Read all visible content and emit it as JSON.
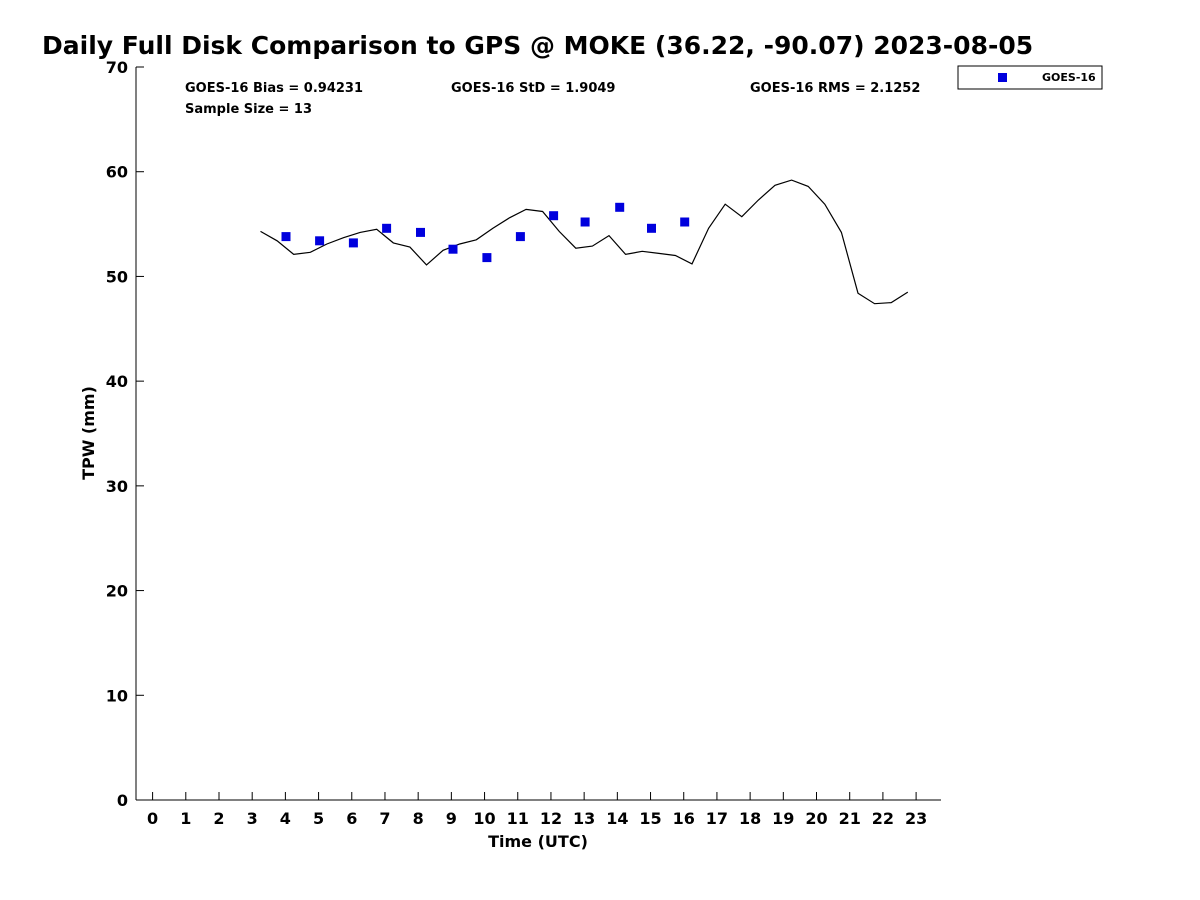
{
  "chart_data": {
    "type": "scatter",
    "title": "Daily Full Disk Comparison to GPS @ MOKE (36.22, -90.07) 2023-08-05",
    "xlabel": "Time (UTC)",
    "ylabel": "TPW (mm)",
    "xlim": [
      -0.5,
      23.75
    ],
    "ylim": [
      0,
      70
    ],
    "x_ticks": [
      0,
      1,
      2,
      3,
      4,
      5,
      6,
      7,
      8,
      9,
      10,
      11,
      12,
      13,
      14,
      15,
      16,
      17,
      18,
      19,
      20,
      21,
      22,
      23
    ],
    "y_ticks": [
      0,
      10,
      20,
      30,
      40,
      50,
      60,
      70
    ],
    "grid": false,
    "legend_position": "outside-top-right",
    "stats": {
      "bias": "GOES-16 Bias = 0.94231",
      "std": "GOES-16 StD = 1.9049",
      "rms": "GOES-16 RMS = 2.1252",
      "sample_size": "Sample Size = 13"
    },
    "series": [
      {
        "name": "GOES-16",
        "kind": "scatter",
        "marker": "square",
        "color": "#0000dd",
        "points": [
          [
            4.02,
            53.8
          ],
          [
            5.03,
            53.4
          ],
          [
            6.05,
            53.2
          ],
          [
            7.05,
            54.6
          ],
          [
            8.07,
            54.2
          ],
          [
            9.05,
            52.6
          ],
          [
            10.07,
            51.8
          ],
          [
            11.08,
            53.8
          ],
          [
            12.08,
            55.8
          ],
          [
            13.03,
            55.2
          ],
          [
            14.07,
            56.6
          ],
          [
            15.03,
            54.6
          ],
          [
            16.03,
            55.2
          ]
        ]
      },
      {
        "kind": "line",
        "color": "#000000",
        "points": [
          [
            3.25,
            54.3
          ],
          [
            3.75,
            53.4
          ],
          [
            4.25,
            52.1
          ],
          [
            4.75,
            52.3
          ],
          [
            5.25,
            53.1
          ],
          [
            5.75,
            53.7
          ],
          [
            6.25,
            54.2
          ],
          [
            6.75,
            54.5
          ],
          [
            7.25,
            53.2
          ],
          [
            7.75,
            52.8
          ],
          [
            8.25,
            51.1
          ],
          [
            8.75,
            52.5
          ],
          [
            9.25,
            53.1
          ],
          [
            9.75,
            53.5
          ],
          [
            10.25,
            54.6
          ],
          [
            10.75,
            55.6
          ],
          [
            11.25,
            56.4
          ],
          [
            11.75,
            56.2
          ],
          [
            12.25,
            54.3
          ],
          [
            12.75,
            52.7
          ],
          [
            13.25,
            52.9
          ],
          [
            13.75,
            53.9
          ],
          [
            14.25,
            52.1
          ],
          [
            14.75,
            52.4
          ],
          [
            15.25,
            52.2
          ],
          [
            15.75,
            52.0
          ],
          [
            16.25,
            51.2
          ],
          [
            16.75,
            54.6
          ],
          [
            17.25,
            56.9
          ],
          [
            17.75,
            55.7
          ],
          [
            18.25,
            57.3
          ],
          [
            18.75,
            58.7
          ],
          [
            19.25,
            59.2
          ],
          [
            19.75,
            58.6
          ],
          [
            20.25,
            56.9
          ],
          [
            20.75,
            54.2
          ],
          [
            21.25,
            48.4
          ],
          [
            21.75,
            47.4
          ],
          [
            22.25,
            47.5
          ],
          [
            22.75,
            48.5
          ]
        ]
      }
    ]
  }
}
